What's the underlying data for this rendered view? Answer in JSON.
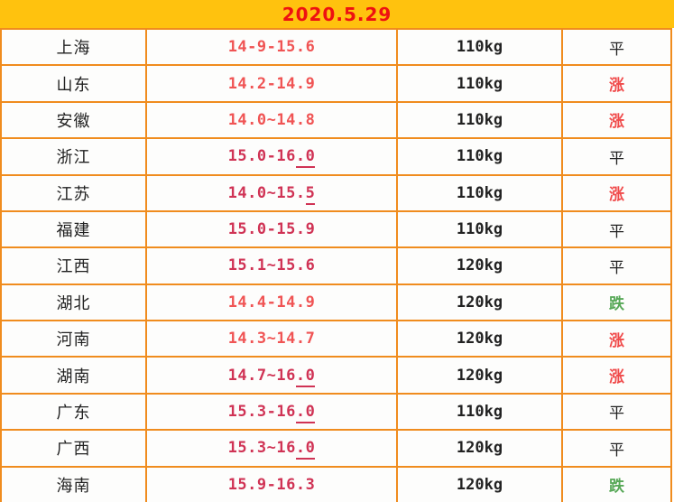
{
  "header": {
    "date": "2020.5.29"
  },
  "colors": {
    "header_bg": "#FFC20E",
    "date_color": "#EE1111",
    "border": "#F08C1E",
    "price_red": "#F05454",
    "price_crimson": "#D03355",
    "rise": "#F04B4B",
    "fall": "#57A857",
    "flat": "#222222",
    "text": "#222222"
  },
  "table": {
    "rows": [
      {
        "province": "上海",
        "price": "14-9-15.6",
        "price_color": "red",
        "underline_chars": 0,
        "weight": "110kg",
        "status": "平",
        "status_type": "flat"
      },
      {
        "province": "山东",
        "price": "14.2-14.9",
        "price_color": "red",
        "underline_chars": 0,
        "weight": "110kg",
        "status": "涨",
        "status_type": "rise"
      },
      {
        "province": "安徽",
        "price": "14.0~14.8",
        "price_color": "red",
        "underline_chars": 0,
        "weight": "110kg",
        "status": "涨",
        "status_type": "rise"
      },
      {
        "province": "浙江",
        "price": "15.0-16.0",
        "price_color": "crimson",
        "underline_chars": 2,
        "weight": "110kg",
        "status": "平",
        "status_type": "flat"
      },
      {
        "province": "江苏",
        "price": "14.0~15.5",
        "price_color": "crimson",
        "underline_chars": 1,
        "weight": "110kg",
        "status": "涨",
        "status_type": "rise"
      },
      {
        "province": "福建",
        "price": "15.0-15.9",
        "price_color": "crimson",
        "underline_chars": 0,
        "weight": "110kg",
        "status": "平",
        "status_type": "flat"
      },
      {
        "province": "江西",
        "price": "15.1~15.6",
        "price_color": "crimson",
        "underline_chars": 0,
        "weight": "120kg",
        "status": "平",
        "status_type": "flat"
      },
      {
        "province": "湖北",
        "price": "14.4-14.9",
        "price_color": "red",
        "underline_chars": 0,
        "weight": "120kg",
        "status": "跌",
        "status_type": "fall"
      },
      {
        "province": "河南",
        "price": "14.3~14.7",
        "price_color": "red",
        "underline_chars": 0,
        "weight": "120kg",
        "status": "涨",
        "status_type": "rise"
      },
      {
        "province": "湖南",
        "price": "14.7~16.0",
        "price_color": "crimson",
        "underline_chars": 2,
        "weight": "120kg",
        "status": "涨",
        "status_type": "rise"
      },
      {
        "province": "广东",
        "price": "15.3-16.0",
        "price_color": "crimson",
        "underline_chars": 2,
        "weight": "110kg",
        "status": "平",
        "status_type": "flat"
      },
      {
        "province": "广西",
        "price": "15.3~16.0",
        "price_color": "crimson",
        "underline_chars": 2,
        "weight": "120kg",
        "status": "平",
        "status_type": "flat"
      },
      {
        "province": "海南",
        "price": "15.9-16.3",
        "price_color": "crimson",
        "underline_chars": 0,
        "weight": "120kg",
        "status": "跌",
        "status_type": "fall"
      }
    ]
  }
}
